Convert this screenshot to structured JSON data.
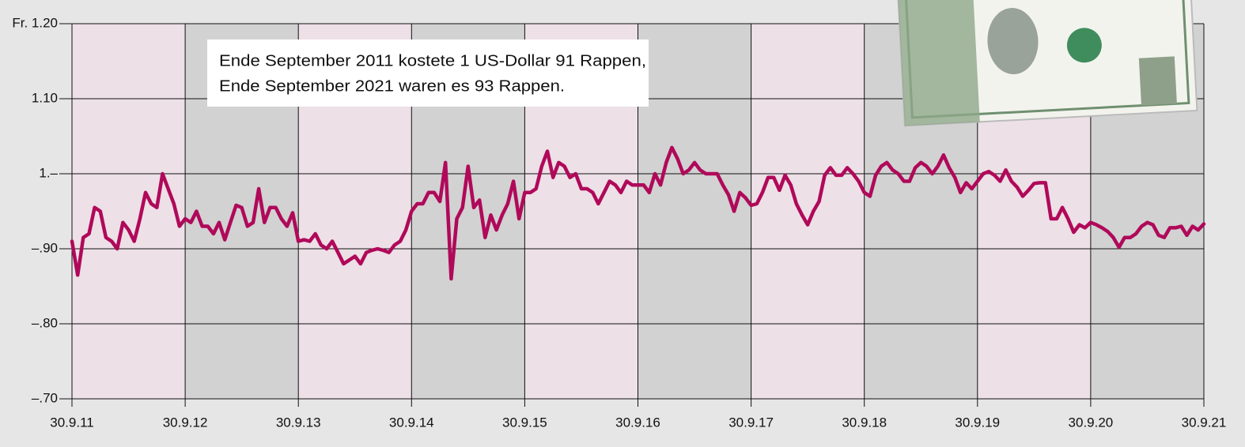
{
  "chart_data": {
    "type": "line",
    "annotations": [
      "Ende September 2011 kostete 1 US-Dollar 91 Rappen,",
      "Ende September 2021 waren es 93 Rappen."
    ],
    "color": "#b0095a",
    "band_colors": [
      "#ede0e6",
      "#d2d2d2"
    ],
    "grid": true,
    "xlim": [
      2011.75,
      2021.75
    ],
    "ylim": [
      0.7,
      1.2
    ],
    "xticks": [
      {
        "value": 2011.75,
        "label": "30.9.11"
      },
      {
        "value": 2012.75,
        "label": "30.9.12"
      },
      {
        "value": 2013.75,
        "label": "30.9.13"
      },
      {
        "value": 2014.75,
        "label": "30.9.14"
      },
      {
        "value": 2015.75,
        "label": "30.9.15"
      },
      {
        "value": 2016.75,
        "label": "30.9.16"
      },
      {
        "value": 2017.75,
        "label": "30.9.17"
      },
      {
        "value": 2018.75,
        "label": "30.9.18"
      },
      {
        "value": 2019.75,
        "label": "30.9.19"
      },
      {
        "value": 2020.75,
        "label": "30.9.20"
      },
      {
        "value": 2021.75,
        "label": "30.9.21"
      }
    ],
    "yticks": [
      {
        "value": 1.2,
        "label": "Fr. 1.20"
      },
      {
        "value": 1.1,
        "label": "1.10"
      },
      {
        "value": 1.0,
        "label": "1.–"
      },
      {
        "value": 0.9,
        "label": "–.90"
      },
      {
        "value": 0.8,
        "label": "–.80"
      },
      {
        "value": 0.7,
        "label": "–.70"
      }
    ],
    "x": [
      2011.75,
      2011.8,
      2011.85,
      2011.9,
      2011.95,
      2012,
      2012.05,
      2012.1,
      2012.15,
      2012.2,
      2012.25,
      2012.3,
      2012.35,
      2012.4,
      2012.45,
      2012.5,
      2012.55,
      2012.6,
      2012.65,
      2012.7,
      2012.75,
      2012.8,
      2012.85,
      2012.9,
      2012.95,
      2013,
      2013.05,
      2013.1,
      2013.15,
      2013.2,
      2013.25,
      2013.3,
      2013.35,
      2013.4,
      2013.45,
      2013.5,
      2013.55,
      2013.6,
      2013.65,
      2013.7,
      2013.75,
      2013.8,
      2013.85,
      2013.9,
      2013.95,
      2014,
      2014.05,
      2014.1,
      2014.15,
      2014.2,
      2014.25,
      2014.3,
      2014.35,
      2014.4,
      2014.45,
      2014.5,
      2014.55,
      2014.6,
      2014.65,
      2014.7,
      2014.75,
      2014.8,
      2014.85,
      2014.9,
      2014.95,
      2015,
      2015.05,
      2015.1,
      2015.15,
      2015.2,
      2015.25,
      2015.3,
      2015.35,
      2015.4,
      2015.45,
      2015.5,
      2015.55,
      2015.6,
      2015.65,
      2015.7,
      2015.75,
      2015.8,
      2015.85,
      2015.9,
      2015.95,
      2016,
      2016.05,
      2016.1,
      2016.15,
      2016.2,
      2016.25,
      2016.3,
      2016.35,
      2016.4,
      2016.45,
      2016.5,
      2016.55,
      2016.6,
      2016.65,
      2016.7,
      2016.75,
      2016.8,
      2016.85,
      2016.9,
      2016.95,
      2017,
      2017.05,
      2017.1,
      2017.15,
      2017.2,
      2017.25,
      2017.3,
      2017.35,
      2017.4,
      2017.45,
      2017.5,
      2017.55,
      2017.6,
      2017.65,
      2017.7,
      2017.75,
      2017.8,
      2017.85,
      2017.9,
      2017.95,
      2018,
      2018.05,
      2018.1,
      2018.15,
      2018.2,
      2018.25,
      2018.3,
      2018.35,
      2018.4,
      2018.45,
      2018.5,
      2018.55,
      2018.6,
      2018.65,
      2018.7,
      2018.75,
      2018.8,
      2018.85,
      2018.9,
      2018.95,
      2019,
      2019.05,
      2019.1,
      2019.15,
      2019.2,
      2019.25,
      2019.3,
      2019.35,
      2019.4,
      2019.45,
      2019.5,
      2019.55,
      2019.6,
      2019.65,
      2019.7,
      2019.75,
      2019.8,
      2019.85,
      2019.9,
      2019.95,
      2020,
      2020.05,
      2020.1,
      2020.15,
      2020.2,
      2020.25,
      2020.3,
      2020.35,
      2020.4,
      2020.45,
      2020.5,
      2020.55,
      2020.6,
      2020.65,
      2020.7,
      2020.75,
      2020.8,
      2020.85,
      2020.9,
      2020.95,
      2021,
      2021.05,
      2021.1,
      2021.15,
      2021.2,
      2021.25,
      2021.3,
      2021.35,
      2021.4,
      2021.45,
      2021.5,
      2021.55,
      2021.6,
      2021.65,
      2021.7,
      2021.75
    ],
    "values": [
      0.91,
      0.865,
      0.915,
      0.92,
      0.955,
      0.95,
      0.915,
      0.91,
      0.9,
      0.935,
      0.925,
      0.91,
      0.94,
      0.975,
      0.96,
      0.955,
      1.0,
      0.98,
      0.96,
      0.93,
      0.94,
      0.935,
      0.95,
      0.93,
      0.93,
      0.92,
      0.935,
      0.912,
      0.935,
      0.958,
      0.955,
      0.93,
      0.935,
      0.98,
      0.935,
      0.955,
      0.955,
      0.94,
      0.93,
      0.948,
      0.91,
      0.912,
      0.91,
      0.92,
      0.905,
      0.9,
      0.91,
      0.895,
      0.88,
      0.885,
      0.89,
      0.88,
      0.895,
      0.898,
      0.9,
      0.898,
      0.895,
      0.905,
      0.91,
      0.925,
      0.95,
      0.96,
      0.96,
      0.975,
      0.975,
      0.963,
      1.015,
      0.86,
      0.94,
      0.955,
      1.01,
      0.955,
      0.965,
      0.915,
      0.945,
      0.925,
      0.945,
      0.96,
      0.99,
      0.94,
      0.975,
      0.975,
      0.98,
      1.01,
      1.03,
      0.995,
      1.015,
      1.01,
      0.995,
      1.0,
      0.98,
      0.98,
      0.975,
      0.96,
      0.975,
      0.99,
      0.985,
      0.975,
      0.99,
      0.985,
      0.985,
      0.985,
      0.975,
      1.0,
      0.985,
      1.015,
      1.035,
      1.02,
      1.0,
      1.005,
      1.015,
      1.005,
      1.0,
      1.0,
      1.0,
      0.985,
      0.972,
      0.95,
      0.975,
      0.968,
      0.958,
      0.96,
      0.975,
      0.995,
      0.995,
      0.978,
      0.998,
      0.985,
      0.96,
      0.945,
      0.932,
      0.95,
      0.963,
      0.998,
      1.008,
      0.998,
      0.998,
      1.008,
      1.0,
      0.99,
      0.975,
      0.97,
      0.998,
      1.01,
      1.015,
      1.005,
      1.0,
      0.99,
      0.99,
      1.008,
      1.015,
      1.01,
      1.0,
      1.01,
      1.025,
      1.008,
      0.995,
      0.975,
      0.988,
      0.98,
      0.99,
      1.0,
      1.003,
      0.998,
      0.99,
      1.005,
      0.99,
      0.982,
      0.97,
      0.978,
      0.987,
      0.988,
      0.988,
      0.94,
      0.94,
      0.955,
      0.94,
      0.922,
      0.932,
      0.928,
      0.935,
      0.932,
      0.928,
      0.923,
      0.915,
      0.902,
      0.915,
      0.915,
      0.92,
      0.93,
      0.935,
      0.932,
      0.918,
      0.915,
      0.928,
      0.928,
      0.93,
      0.918,
      0.93,
      0.925,
      0.933
    ]
  }
}
